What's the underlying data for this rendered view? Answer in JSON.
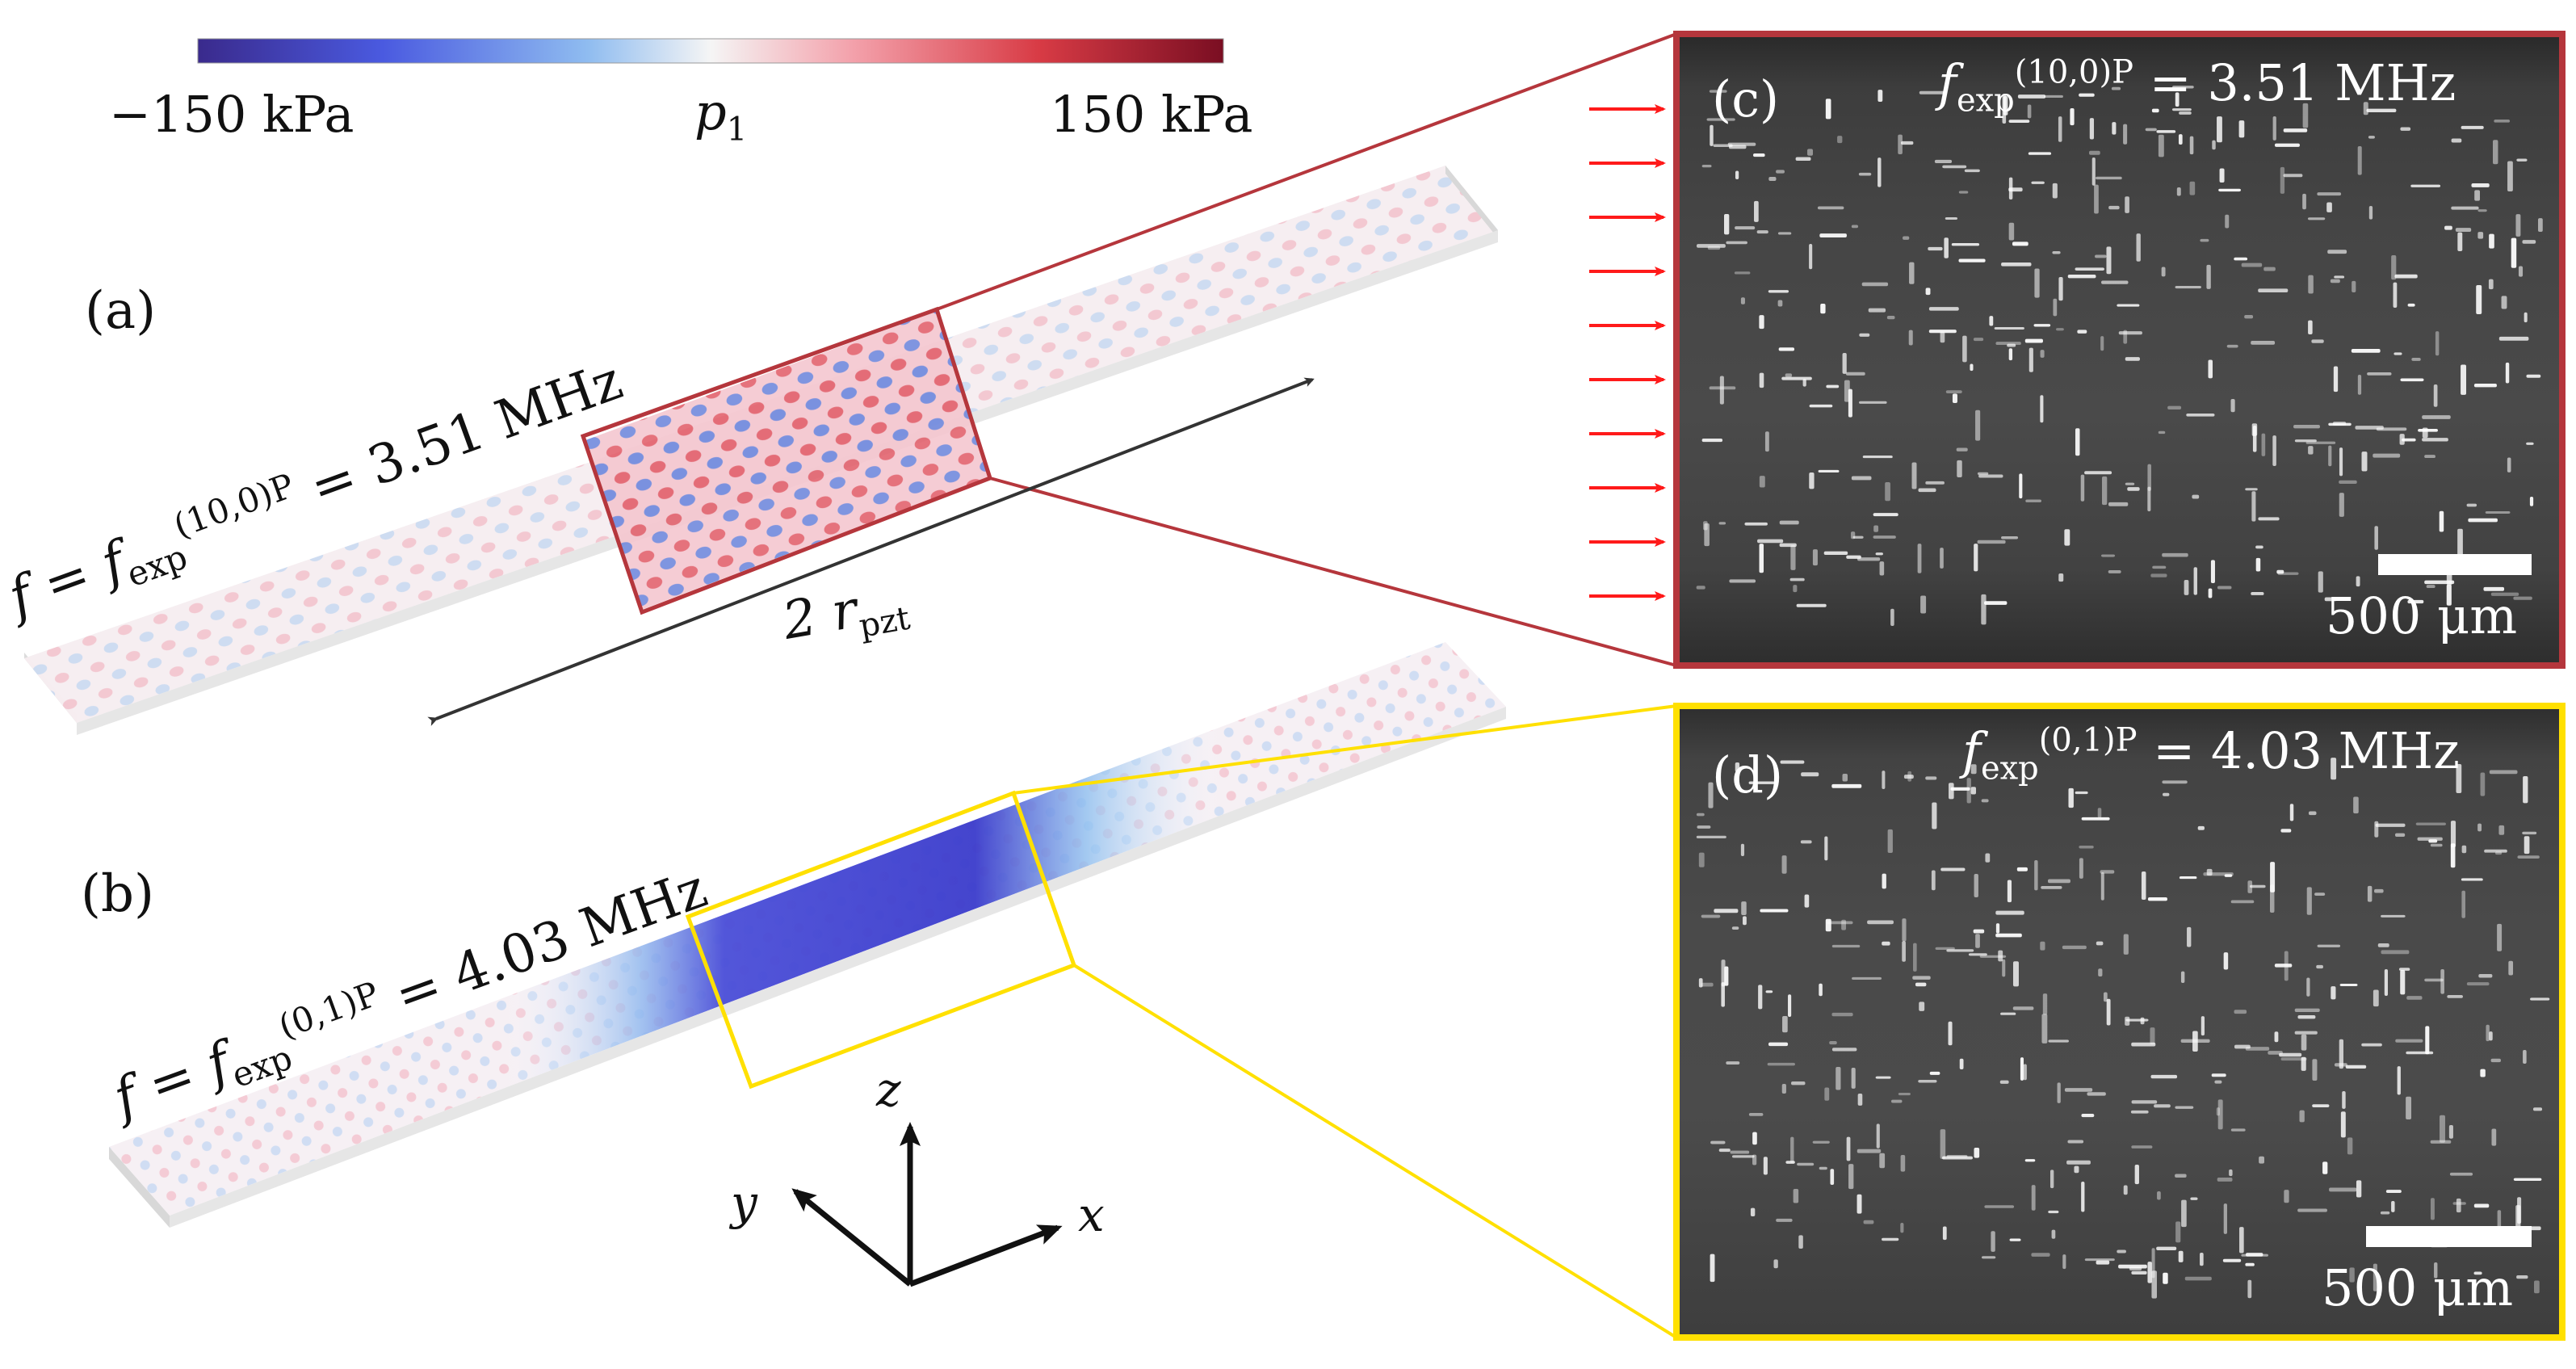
{
  "colorbar": {
    "min_label": "−150 kPa",
    "max_label": "150 kPa",
    "var_label": "p",
    "var_sub": "1",
    "colors": [
      "#3a2a8c",
      "#4a5ae0",
      "#8fbcf0",
      "#f5f5f5",
      "#f3a0aa",
      "#d83b45",
      "#7a0e22"
    ]
  },
  "panel_a": {
    "letter": "(a)",
    "freq_prefix": "f = f",
    "freq_sub": "exp",
    "freq_sup": "(10,0)P",
    "freq_value": " = 3.51 MHz",
    "dimension_label": "2 r",
    "dimension_sub": "pzt",
    "highlight_color": "#b5363c"
  },
  "panel_b": {
    "letter": "(b)",
    "freq_prefix": "f = f",
    "freq_sub": "exp",
    "freq_sup": "(0,1)P",
    "freq_value": " = 4.03 MHz",
    "highlight_color": "#ffe000"
  },
  "axes": {
    "x": "x",
    "y": "y",
    "z": "z"
  },
  "panel_c": {
    "letter": "(c)",
    "freq_prefix": "f",
    "freq_sub": "exp",
    "freq_sup": "(10,0)P",
    "freq_value": " = 3.51 MHz",
    "scale_label": "500 μm"
  },
  "panel_d": {
    "letter": "(d)",
    "freq_prefix": "f",
    "freq_sub": "exp",
    "freq_sup": "(0,1)P",
    "freq_value": " = 4.03 MHz",
    "scale_label": "500 μm"
  }
}
